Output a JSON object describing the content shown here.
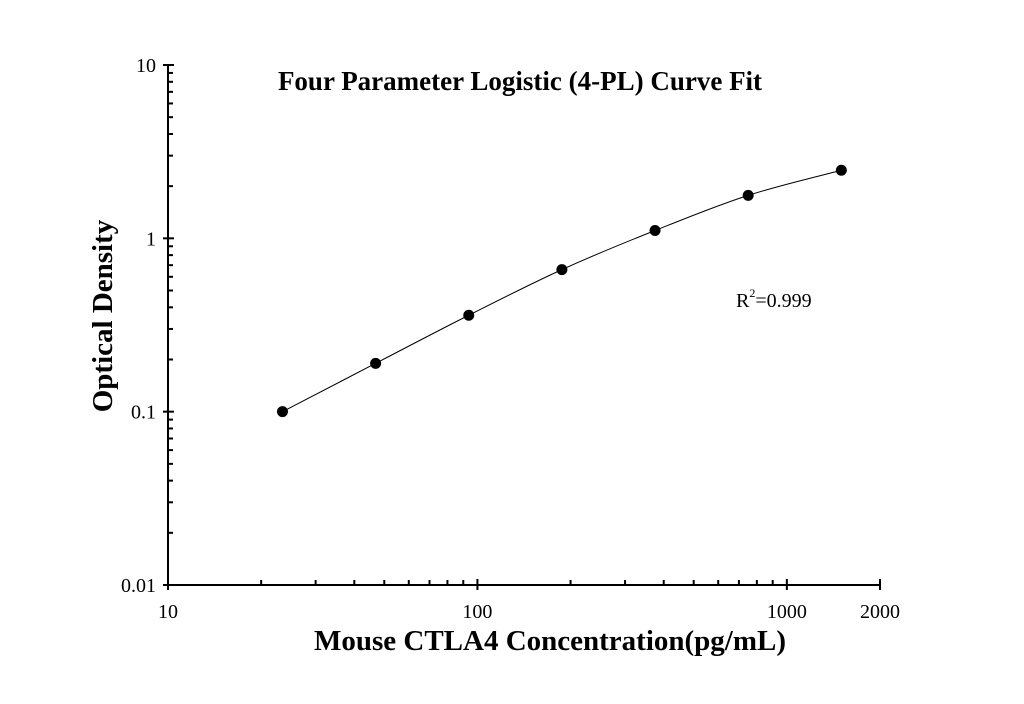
{
  "chart_data": {
    "type": "scatter",
    "title": "Four Parameter Logistic (4-PL) Curve Fit",
    "xlabel": "Mouse CTLA4 Concentration(pg/mL)",
    "ylabel": "Optical Density",
    "xscale": "log",
    "yscale": "log",
    "xlim": [
      10,
      2000
    ],
    "ylim": [
      0.01,
      10
    ],
    "xticks": [
      "10",
      "100",
      "1000",
      "2000"
    ],
    "yticks": [
      "0.01",
      "0.1",
      "1",
      "10"
    ],
    "grid": false,
    "series": [
      {
        "x": [
          23.44,
          46.88,
          93.75,
          187.5,
          375,
          750,
          1500
        ],
        "y": [
          0.1,
          0.19,
          0.36,
          0.66,
          1.11,
          1.77,
          2.47
        ]
      }
    ],
    "fit_curve": "4-PL",
    "annotation": {
      "prefix": "R",
      "sup": "2",
      "suffix": "=0.999"
    },
    "colors": {
      "points": "#000000",
      "curve": "#000000"
    }
  }
}
